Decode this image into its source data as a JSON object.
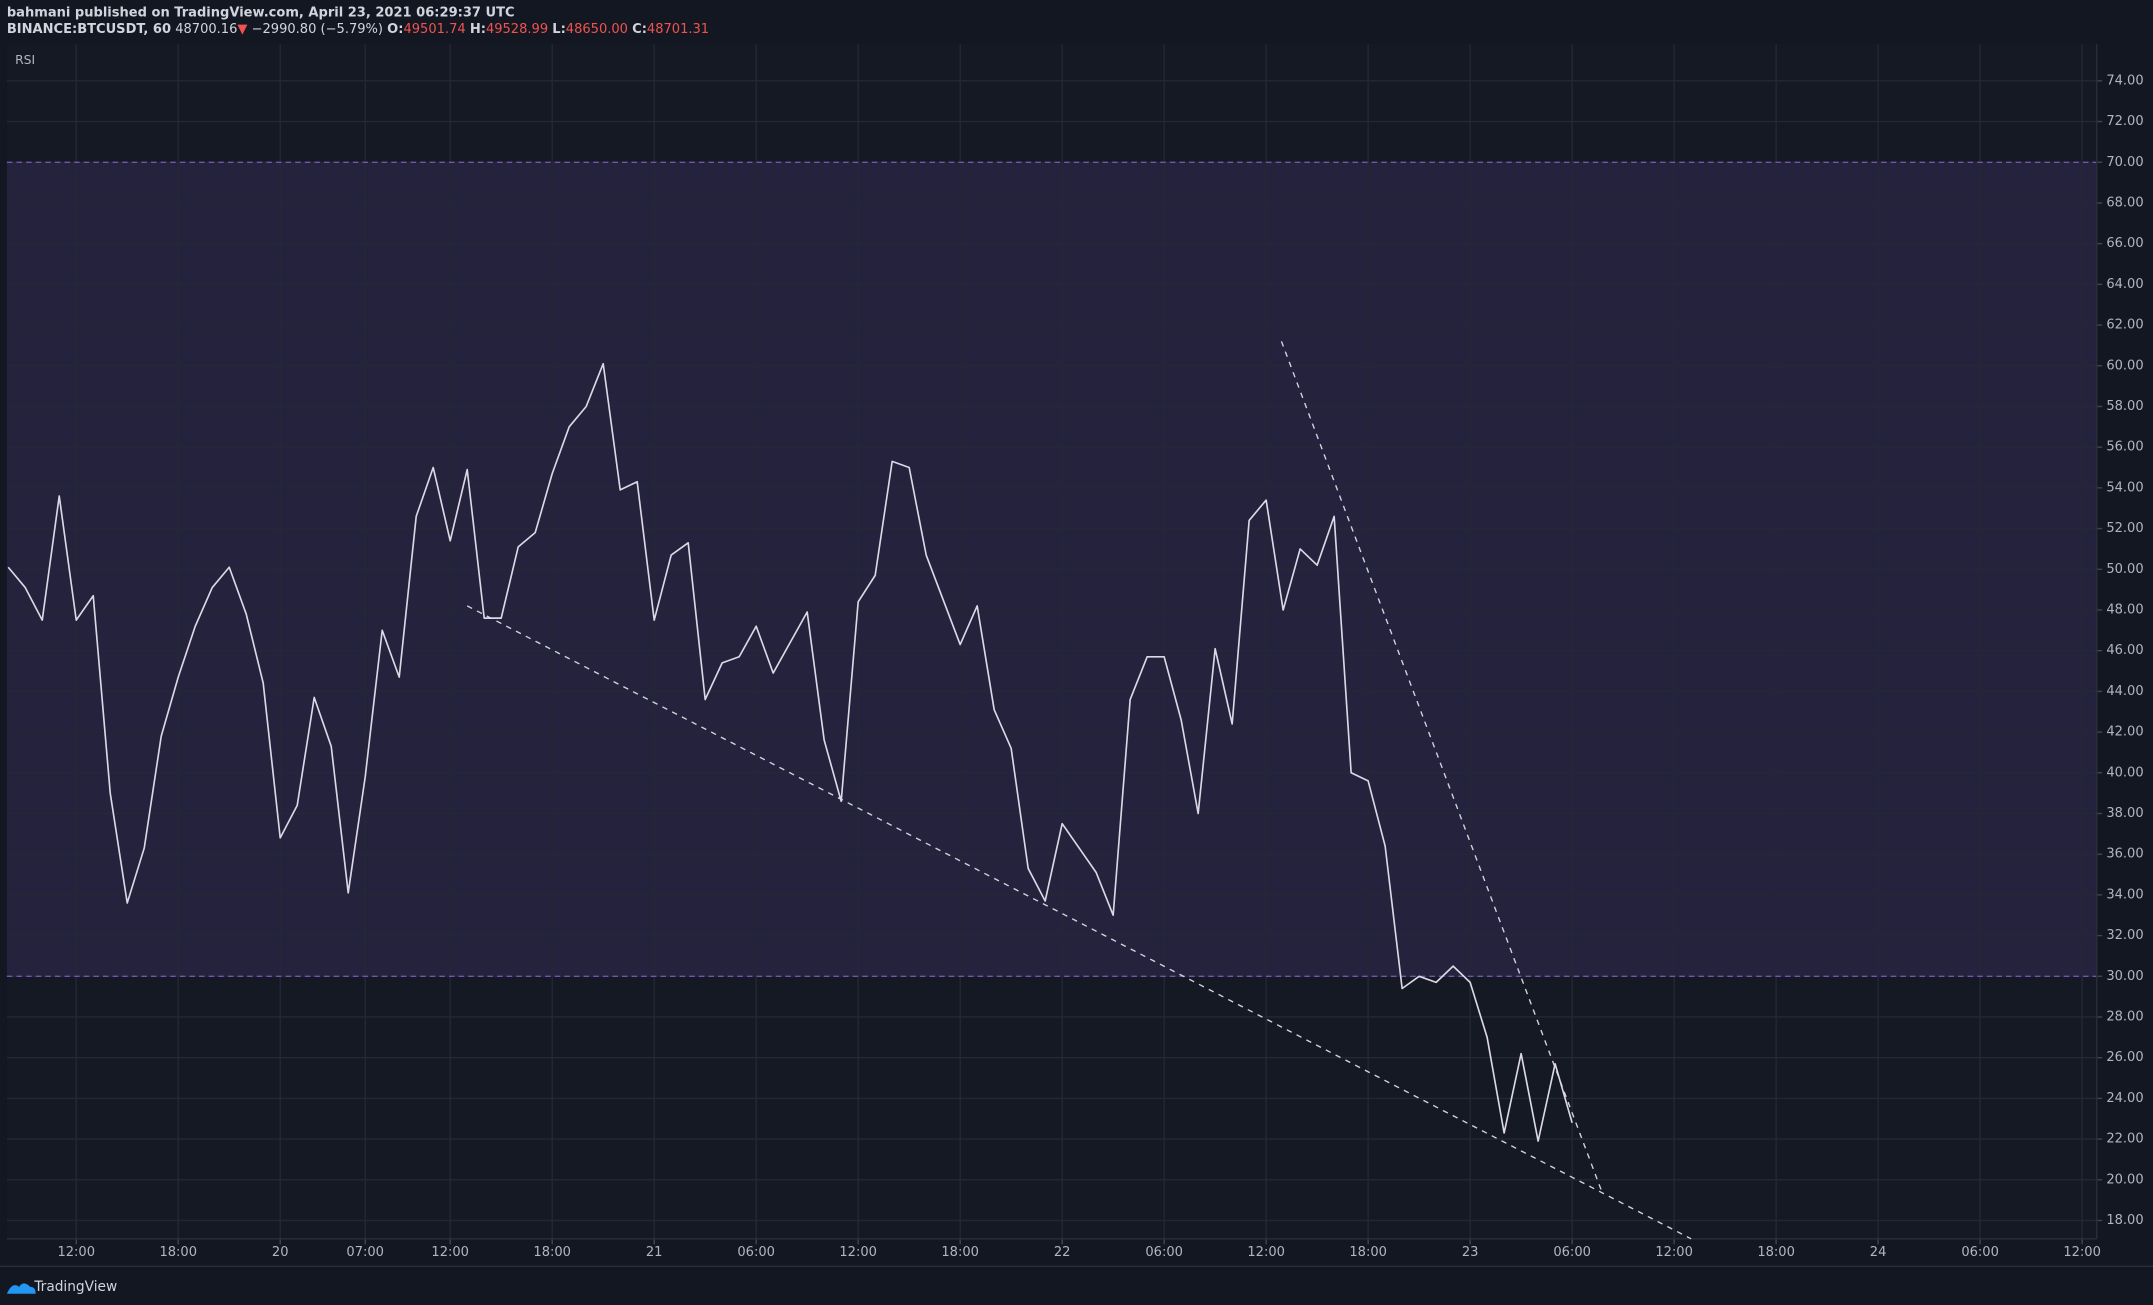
{
  "header": {
    "published": "bahmani published on TradingView.com, April 23, 2021 06:29:37 UTC",
    "symbol": "BINANCE:BTCUSDT, 60",
    "last": "48700.16",
    "arrow": "▼",
    "change": "−2990.80 (−5.79%)",
    "o_label": "O:",
    "open": "49501.74",
    "h_label": "H:",
    "high": "49528.99",
    "l_label": "L:",
    "low": "48650.00",
    "c_label": "C:",
    "close": "48701.31"
  },
  "footer": {
    "brand": "TradingView"
  },
  "chart_data": {
    "type": "line",
    "series": [
      {
        "name": "RSI",
        "color": "#dcd8e6",
        "values": [
          50.1,
          49.1,
          47.5,
          53.6,
          47.5,
          48.7,
          39.0,
          33.6,
          36.3,
          41.8,
          44.7,
          47.2,
          49.1,
          50.1,
          47.8,
          44.4,
          36.8,
          38.4,
          43.7,
          41.3,
          34.1,
          39.8,
          47.0,
          44.7,
          52.6,
          55.0,
          51.4,
          54.9,
          47.6,
          47.6,
          51.1,
          51.8,
          54.7,
          57.0,
          58.0,
          60.1,
          53.9,
          54.3,
          47.5,
          50.7,
          51.3,
          43.6,
          45.4,
          45.7,
          47.2,
          44.9,
          46.4,
          47.9,
          41.6,
          38.6,
          48.4,
          49.7,
          55.3,
          55.0,
          50.7,
          48.5,
          46.3,
          48.2,
          43.1,
          41.2,
          35.3,
          33.7,
          37.5,
          36.3,
          35.1,
          33.0,
          43.6,
          45.7,
          45.7,
          42.6,
          38.0,
          46.1,
          42.4,
          52.4,
          53.4,
          48.0,
          51.0,
          50.2,
          52.6,
          40.0,
          39.6,
          36.4,
          29.4,
          30.0,
          29.7,
          30.5,
          29.7,
          27.0,
          22.3,
          26.2,
          21.9,
          25.7,
          22.8
        ]
      }
    ],
    "band": [
      30,
      70
    ],
    "band_color": "#7e57c2",
    "trendlines": [
      {
        "from": [
          27,
          48.2
        ],
        "to": [
          99,
          17.1
        ]
      },
      {
        "from": [
          74.9,
          61.2
        ],
        "to": [
          93.8,
          19.3
        ]
      }
    ],
    "xlim": [
      0,
      123
    ],
    "xticks": [
      {
        "value": 4,
        "label": "12:00"
      },
      {
        "value": 10,
        "label": "18:00"
      },
      {
        "value": 16,
        "label": "20"
      },
      {
        "value": 21,
        "label": "07:00"
      },
      {
        "value": 26,
        "label": "12:00"
      },
      {
        "value": 32,
        "label": "18:00"
      },
      {
        "value": 38,
        "label": "21"
      },
      {
        "value": 44,
        "label": "06:00"
      },
      {
        "value": 50,
        "label": "12:00"
      },
      {
        "value": 56,
        "label": "18:00"
      },
      {
        "value": 62,
        "label": "22"
      },
      {
        "value": 68,
        "label": "06:00"
      },
      {
        "value": 74,
        "label": "12:00"
      },
      {
        "value": 80,
        "label": "18:00"
      },
      {
        "value": 86,
        "label": "23"
      },
      {
        "value": 92,
        "label": "06:00"
      },
      {
        "value": 98,
        "label": "12:00"
      },
      {
        "value": 104,
        "label": "18:00"
      },
      {
        "value": 110,
        "label": "24"
      },
      {
        "value": 116,
        "label": "06:00"
      },
      {
        "value": 122,
        "label": "12:00"
      }
    ],
    "ylim": [
      17.1,
      75.8
    ],
    "yticks": [
      {
        "value": 18,
        "label": "18.00"
      },
      {
        "value": 20,
        "label": "20.00"
      },
      {
        "value": 22,
        "label": "22.00"
      },
      {
        "value": 24,
        "label": "24.00"
      },
      {
        "value": 26,
        "label": "26.00"
      },
      {
        "value": 28,
        "label": "28.00"
      },
      {
        "value": 30,
        "label": "30.00"
      },
      {
        "value": 32,
        "label": "32.00"
      },
      {
        "value": 34,
        "label": "34.00"
      },
      {
        "value": 36,
        "label": "36.00"
      },
      {
        "value": 38,
        "label": "38.00"
      },
      {
        "value": 40,
        "label": "40.00"
      },
      {
        "value": 42,
        "label": "42.00"
      },
      {
        "value": 44,
        "label": "44.00"
      },
      {
        "value": 46,
        "label": "46.00"
      },
      {
        "value": 48,
        "label": "48.00"
      },
      {
        "value": 50,
        "label": "50.00"
      },
      {
        "value": 52,
        "label": "52.00"
      },
      {
        "value": 54,
        "label": "54.00"
      },
      {
        "value": 56,
        "label": "56.00"
      },
      {
        "value": 58,
        "label": "58.00"
      },
      {
        "value": 60,
        "label": "60.00"
      },
      {
        "value": 62,
        "label": "62.00"
      },
      {
        "value": 64,
        "label": "64.00"
      },
      {
        "value": 66,
        "label": "66.00"
      },
      {
        "value": 68,
        "label": "68.00"
      },
      {
        "value": 70,
        "label": "70.00"
      },
      {
        "value": 72,
        "label": "72.00"
      },
      {
        "value": 74,
        "label": "74.00"
      }
    ],
    "grid": true
  }
}
